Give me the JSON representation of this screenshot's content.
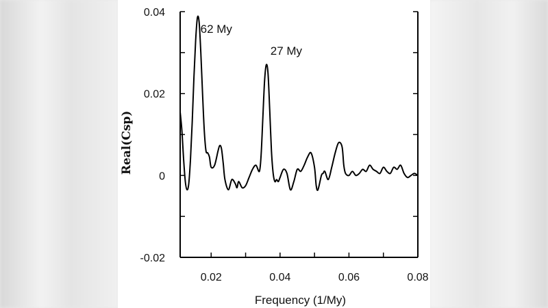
{
  "chart_data": {
    "type": "line",
    "title": "",
    "xlabel": "Frequency (1/My)",
    "ylabel": "Real(Csp)",
    "xlim": [
      0.011,
      0.08
    ],
    "ylim": [
      -0.02,
      0.04
    ],
    "x_ticks": [
      0.02,
      0.04,
      0.06,
      0.08
    ],
    "x_tick_labels": [
      "0.02",
      "0.04",
      "0.06",
      "0.08"
    ],
    "y_ticks": [
      -0.02,
      0,
      0.02,
      0.04
    ],
    "y_tick_labels": [
      "-0.02",
      "0",
      "0.02",
      "0.04"
    ],
    "annotations": [
      {
        "text": "62 My",
        "x": 0.0215,
        "y": 0.0348
      },
      {
        "text": "27 My",
        "x": 0.0418,
        "y": 0.0295
      }
    ],
    "series": [
      {
        "name": "Real(Csp)",
        "x": [
          0.011,
          0.0115,
          0.012,
          0.0125,
          0.013,
          0.0135,
          0.014,
          0.0145,
          0.015,
          0.0155,
          0.016,
          0.0165,
          0.017,
          0.0175,
          0.018,
          0.0185,
          0.019,
          0.0195,
          0.02,
          0.021,
          0.022,
          0.0225,
          0.023,
          0.0235,
          0.024,
          0.025,
          0.026,
          0.027,
          0.0275,
          0.028,
          0.029,
          0.03,
          0.031,
          0.032,
          0.033,
          0.034,
          0.0345,
          0.035,
          0.0355,
          0.036,
          0.0365,
          0.037,
          0.0375,
          0.038,
          0.0385,
          0.039,
          0.0395,
          0.04,
          0.041,
          0.042,
          0.043,
          0.044,
          0.045,
          0.046,
          0.047,
          0.048,
          0.049,
          0.05,
          0.0505,
          0.051,
          0.052,
          0.0525,
          0.053,
          0.054,
          0.055,
          0.056,
          0.057,
          0.058,
          0.0585,
          0.059,
          0.06,
          0.061,
          0.062,
          0.063,
          0.064,
          0.065,
          0.066,
          0.067,
          0.068,
          0.069,
          0.07,
          0.071,
          0.072,
          0.073,
          0.074,
          0.075,
          0.076,
          0.077,
          0.078,
          0.079,
          0.08
        ],
        "values": [
          0.0155,
          0.011,
          0.004,
          -0.0015,
          -0.0035,
          -0.002,
          0.004,
          0.013,
          0.024,
          0.033,
          0.0385,
          0.0375,
          0.03,
          0.02,
          0.011,
          0.006,
          0.0055,
          0.0045,
          0.002,
          0.0025,
          0.006,
          0.0073,
          0.0065,
          0.003,
          -0.001,
          -0.0035,
          -0.001,
          -0.002,
          -0.003,
          -0.0015,
          -0.003,
          -0.0025,
          -0.0005,
          0.0015,
          0.0025,
          0.001,
          0.005,
          0.014,
          0.023,
          0.027,
          0.025,
          0.016,
          0.006,
          0.0005,
          -0.0015,
          -0.001,
          -0.0015,
          -0.0005,
          0.0015,
          0.0005,
          -0.0035,
          -0.0015,
          0.0015,
          0.001,
          0.0025,
          0.0045,
          0.0055,
          0.002,
          -0.0025,
          -0.0035,
          0.0,
          0.0005,
          0.001,
          -0.001,
          0.002,
          0.0055,
          0.008,
          0.007,
          0.0025,
          0.0005,
          0.0,
          0.001,
          0.0,
          0.0005,
          0.0015,
          0.001,
          0.0025,
          0.0015,
          0.001,
          0.0005,
          0.002,
          0.001,
          0.0005,
          0.002,
          0.0015,
          0.0025,
          0.0005,
          -0.0005,
          0.0,
          0.0005,
          0.0
        ]
      }
    ]
  },
  "style": {
    "line_color": "#000000",
    "axis_color": "#000000",
    "panel_color": "#ffffff"
  }
}
